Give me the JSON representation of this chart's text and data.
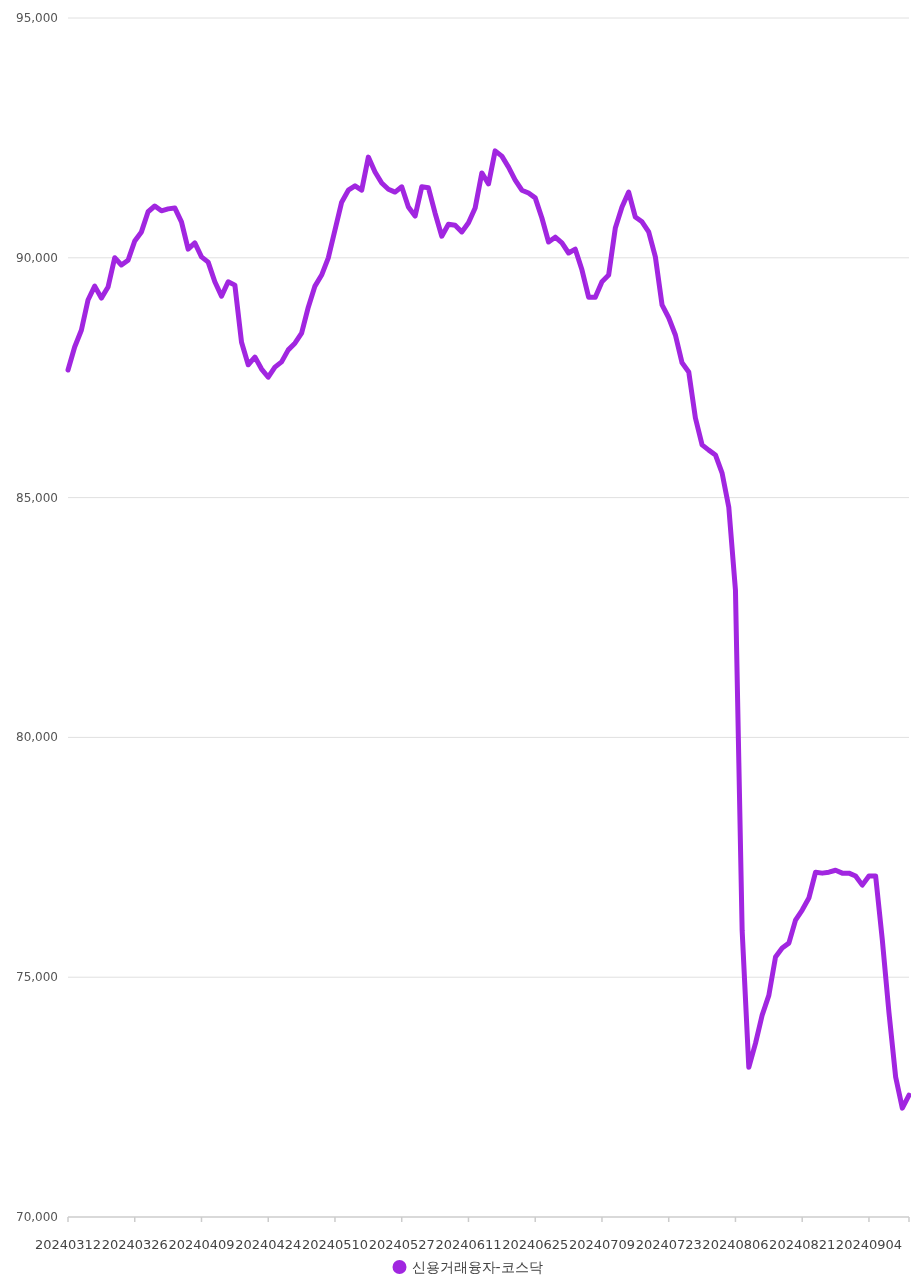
{
  "chart_data": {
    "type": "line",
    "categories": [
      "20240312",
      null,
      null,
      null,
      null,
      null,
      null,
      null,
      null,
      null,
      "20240326",
      null,
      null,
      null,
      null,
      null,
      null,
      null,
      null,
      null,
      "20240409",
      null,
      null,
      null,
      null,
      null,
      null,
      null,
      null,
      null,
      "20240424",
      null,
      null,
      null,
      null,
      null,
      null,
      null,
      null,
      null,
      "20240510",
      null,
      null,
      null,
      null,
      null,
      null,
      null,
      null,
      null,
      "20240527",
      null,
      null,
      null,
      null,
      null,
      null,
      null,
      null,
      null,
      "20240611",
      null,
      null,
      null,
      null,
      null,
      null,
      null,
      null,
      null,
      "20240625",
      null,
      null,
      null,
      null,
      null,
      null,
      null,
      null,
      null,
      "20240709",
      null,
      null,
      null,
      null,
      null,
      null,
      null,
      null,
      null,
      "20240723",
      null,
      null,
      null,
      null,
      null,
      null,
      null,
      null,
      null,
      "20240806",
      null,
      null,
      null,
      null,
      null,
      null,
      null,
      null,
      null,
      "20240821",
      null,
      null,
      null,
      null,
      null,
      null,
      null,
      null,
      null,
      "20240904",
      null,
      null,
      null,
      null,
      null,
      null
    ],
    "series": [
      {
        "name": "신용거래융자-코스닥",
        "color": "#a126e0",
        "values": [
          87660,
          88140,
          88490,
          89120,
          89410,
          89160,
          89390,
          90000,
          89850,
          89950,
          90350,
          90540,
          90960,
          91080,
          90980,
          91020,
          91040,
          90750,
          90180,
          90310,
          90020,
          89910,
          89500,
          89200,
          89500,
          89430,
          88240,
          87770,
          87930,
          87680,
          87510,
          87720,
          87830,
          88080,
          88220,
          88430,
          88970,
          89410,
          89640,
          90000,
          90580,
          91160,
          91410,
          91500,
          91410,
          92100,
          91790,
          91560,
          91430,
          91370,
          91480,
          91060,
          90870,
          91480,
          91460,
          90930,
          90450,
          90700,
          90680,
          90540,
          90730,
          91040,
          91770,
          91540,
          92230,
          92120,
          91890,
          91620,
          91410,
          91350,
          91250,
          90830,
          90330,
          90430,
          90310,
          90100,
          90180,
          89750,
          89180,
          89180,
          89500,
          89640,
          90620,
          91060,
          91370,
          90850,
          90750,
          90540,
          90020,
          89020,
          88750,
          88390,
          87810,
          87620,
          86660,
          86100,
          85990,
          85890,
          85510,
          84800,
          83070,
          75980,
          73120,
          73620,
          74210,
          74620,
          75420,
          75610,
          75710,
          76190,
          76400,
          76650,
          77190,
          77170,
          77190,
          77230,
          77170,
          77170,
          77110,
          76920,
          77110,
          77110,
          75780,
          74260,
          72920,
          72270,
          72540
        ]
      }
    ],
    "ylim": [
      70000,
      95000
    ],
    "yticks": [
      {
        "value": 70000,
        "label": "70,000"
      },
      {
        "value": 75000,
        "label": "75,000"
      },
      {
        "value": 80000,
        "label": "80,000"
      },
      {
        "value": 85000,
        "label": "85,000"
      },
      {
        "value": 90000,
        "label": "90,000"
      },
      {
        "value": 95000,
        "label": "95,000"
      }
    ],
    "grid": "y",
    "legend": "bottom"
  }
}
